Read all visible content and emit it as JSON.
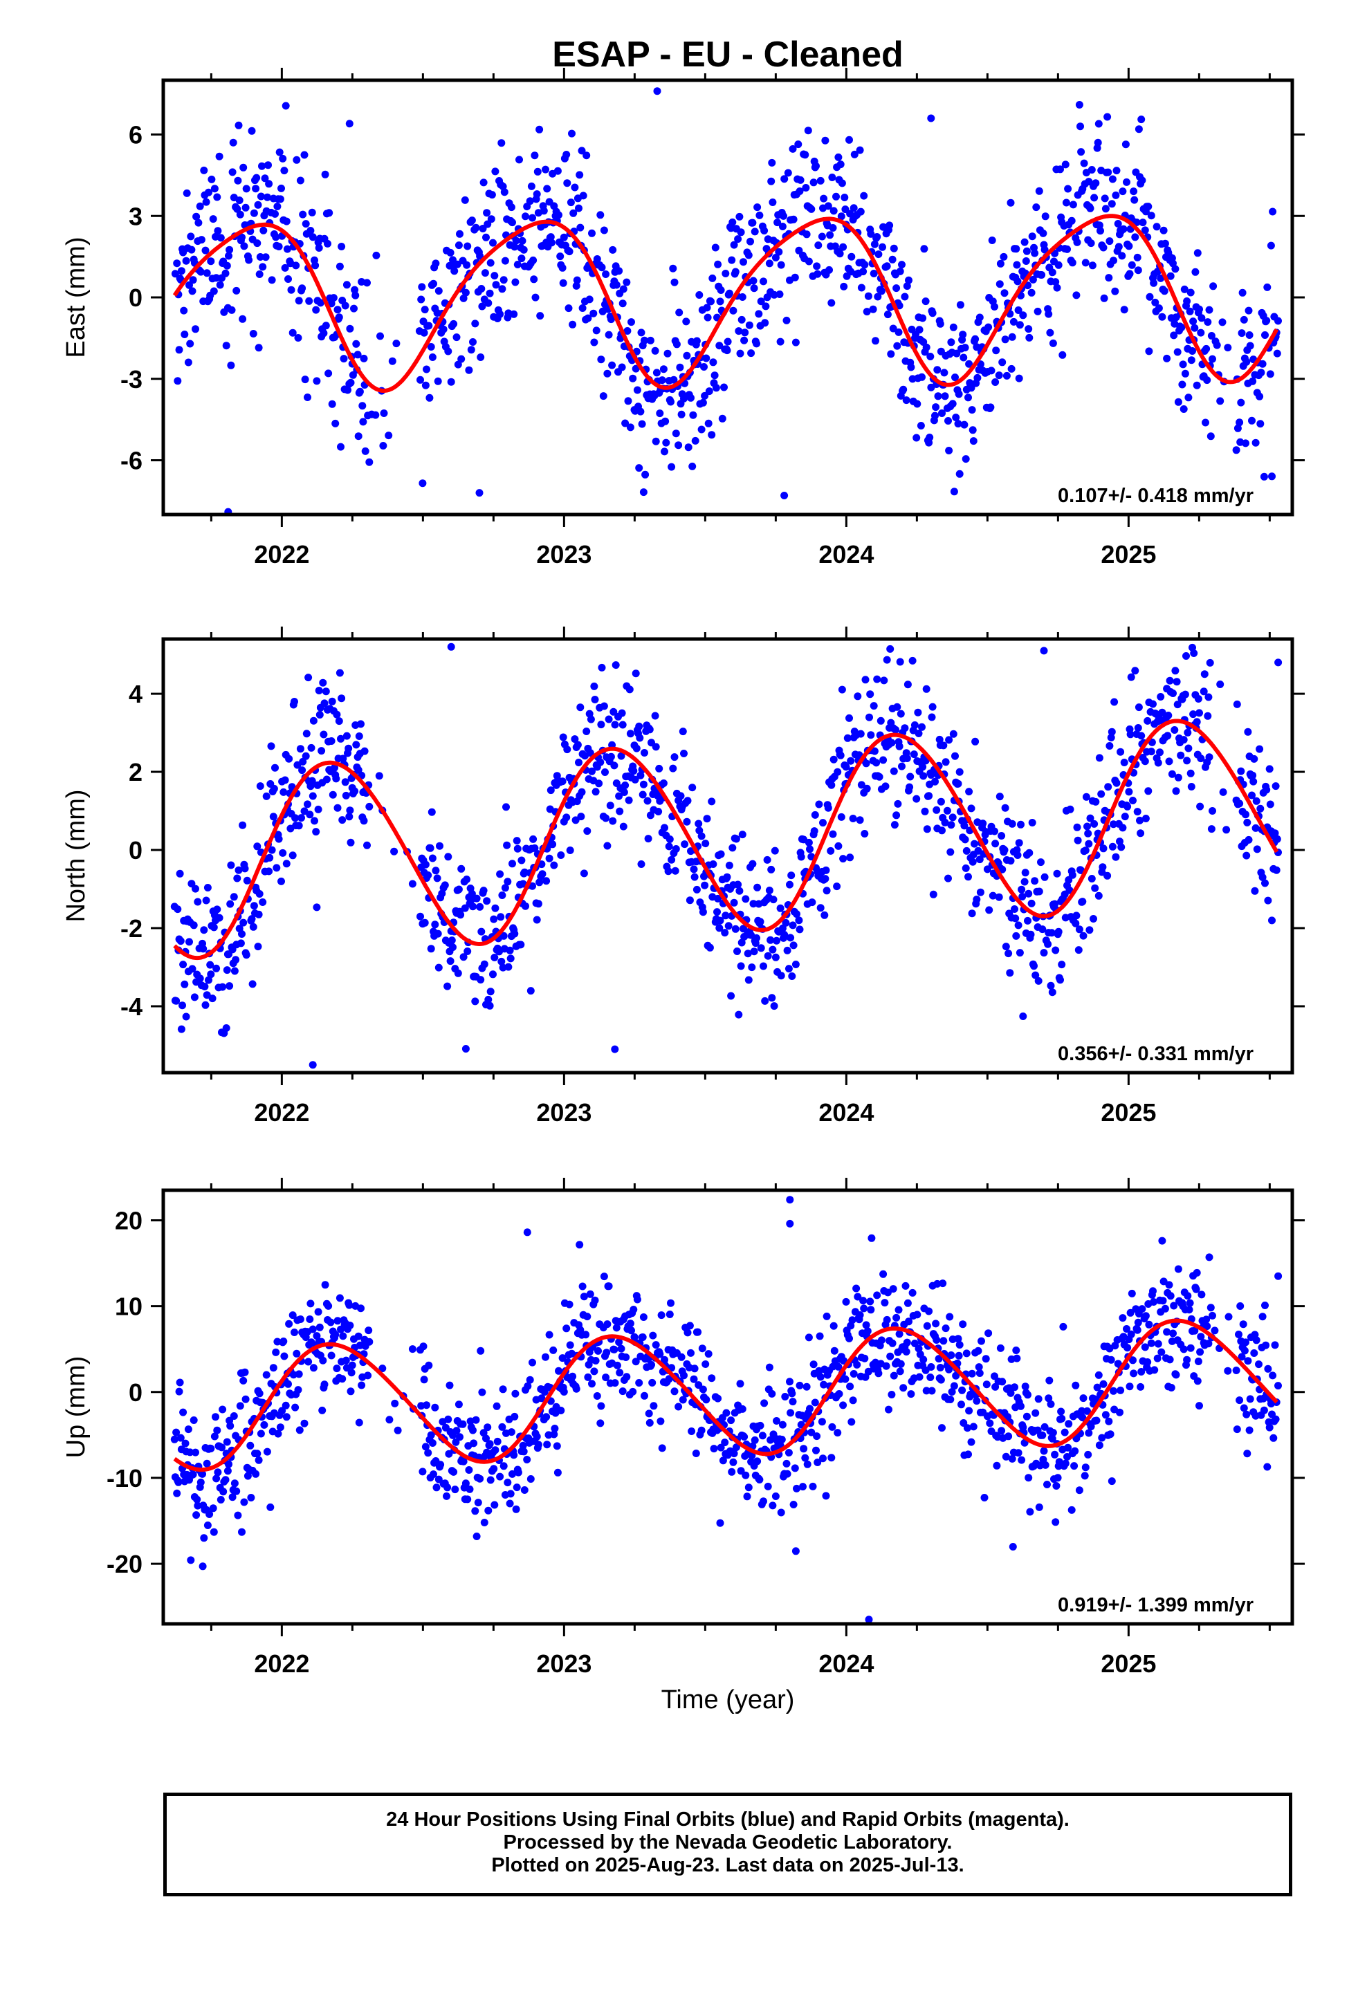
{
  "figure": {
    "title": "ESAP  - EU - Cleaned",
    "xlabel": "Time (year)",
    "caption": [
      "24 Hour Positions Using Final Orbits (blue) and Rapid Orbits (magenta).",
      "Processed by the Nevada Geodetic Laboratory.",
      "Plotted on 2025-Aug-23. Last data on 2025-Jul-13."
    ],
    "colors": {
      "data": "#0000ff",
      "fit": "#ff0000",
      "frame": "#000000"
    }
  },
  "chart_data": [
    {
      "type": "scatter",
      "title": "ESAP  - EU - Cleaned",
      "xlabel": "",
      "ylabel": "East (mm)",
      "xlim": [
        2021.58,
        2025.58
      ],
      "ylim": [
        -8.0,
        8.0
      ],
      "x_ticks": [
        "2022",
        "2023",
        "2024",
        "2025"
      ],
      "y_ticks": [
        "-6",
        "-3",
        "0",
        "3",
        "6"
      ],
      "y_tick_values": [
        -6,
        -3,
        0,
        3,
        6
      ],
      "rate": "0.107+/- 0.418 mm/yr",
      "fit": {
        "color": "#ff0000",
        "offset": 0.107,
        "slope": 0.107,
        "ref": 2023.5,
        "annual_amp": 3.0,
        "annual_phase": 2.3,
        "semiannual_amp": 0.5,
        "semiannual_phase": 0.6,
        "x_end": 2025.53
      },
      "scatter": {
        "color": "#0000ff",
        "x_start": 2021.62,
        "x_end": 2025.53,
        "noise": 1.7,
        "outliers": [
          [
            2021.81,
            -7.9
          ],
          [
            2022.7,
            -7.2
          ],
          [
            2023.78,
            -7.3
          ],
          [
            2023.33,
            7.6
          ],
          [
            2022.24,
            6.4
          ],
          [
            2024.3,
            6.6
          ]
        ],
        "gaps": [
          [
            2022.31,
            2022.49
          ],
          [
            2025.3,
            2025.38
          ]
        ]
      }
    },
    {
      "type": "scatter",
      "title": "",
      "xlabel": "",
      "ylabel": "North (mm)",
      "xlim": [
        2021.58,
        2025.58
      ],
      "ylim": [
        -5.7,
        5.4
      ],
      "x_ticks": [
        "2022",
        "2023",
        "2024",
        "2025"
      ],
      "y_ticks": [
        "-4",
        "-2",
        "0",
        "2",
        "4"
      ],
      "y_tick_values": [
        -4,
        -2,
        0,
        2,
        4
      ],
      "rate": "0.356+/- 0.331 mm/yr",
      "fit": {
        "color": "#ff0000",
        "offset": 0.35,
        "slope": 0.356,
        "ref": 2023.5,
        "annual_amp": 2.4,
        "annual_phase": 0.4,
        "semiannual_amp": 0.15,
        "semiannual_phase": 1.2,
        "x_end": 2025.53
      },
      "scatter": {
        "color": "#0000ff",
        "x_start": 2021.62,
        "x_end": 2025.53,
        "noise": 1.0,
        "outliers": [
          [
            2022.11,
            -5.5
          ],
          [
            2022.6,
            5.2
          ],
          [
            2024.7,
            5.1
          ],
          [
            2023.18,
            -5.1
          ],
          [
            2025.53,
            4.8
          ]
        ],
        "gaps": [
          [
            2022.31,
            2022.49
          ],
          [
            2025.3,
            2025.38
          ]
        ]
      }
    },
    {
      "type": "scatter",
      "title": "",
      "xlabel": "Time (year)",
      "ylabel": "Up (mm)",
      "xlim": [
        2021.58,
        2025.58
      ],
      "ylim": [
        -27.0,
        23.5
      ],
      "x_ticks": [
        "2022",
        "2023",
        "2024",
        "2025"
      ],
      "y_ticks": [
        "-20",
        "-10",
        "0",
        "10",
        "20"
      ],
      "y_tick_values": [
        -20,
        -10,
        0,
        10,
        20
      ],
      "rate": "0.919+/- 1.399 mm/yr",
      "fit": {
        "color": "#ff0000",
        "offset": -0.2,
        "slope": 0.919,
        "ref": 2023.5,
        "annual_amp": 7.0,
        "annual_phase": 0.35,
        "semiannual_amp": 0.6,
        "semiannual_phase": 0.9,
        "x_end": 2025.53
      },
      "scatter": {
        "color": "#0000ff",
        "x_start": 2021.62,
        "x_end": 2025.53,
        "noise": 4.0,
        "outliers": [
          [
            2023.8,
            22.4
          ],
          [
            2023.8,
            19.6
          ],
          [
            2024.08,
            -26.5
          ],
          [
            2022.87,
            18.6
          ],
          [
            2021.72,
            -20.3
          ],
          [
            2025.53,
            13.5
          ]
        ],
        "gaps": [
          [
            2022.31,
            2022.49
          ],
          [
            2025.3,
            2025.38
          ]
        ]
      }
    }
  ]
}
